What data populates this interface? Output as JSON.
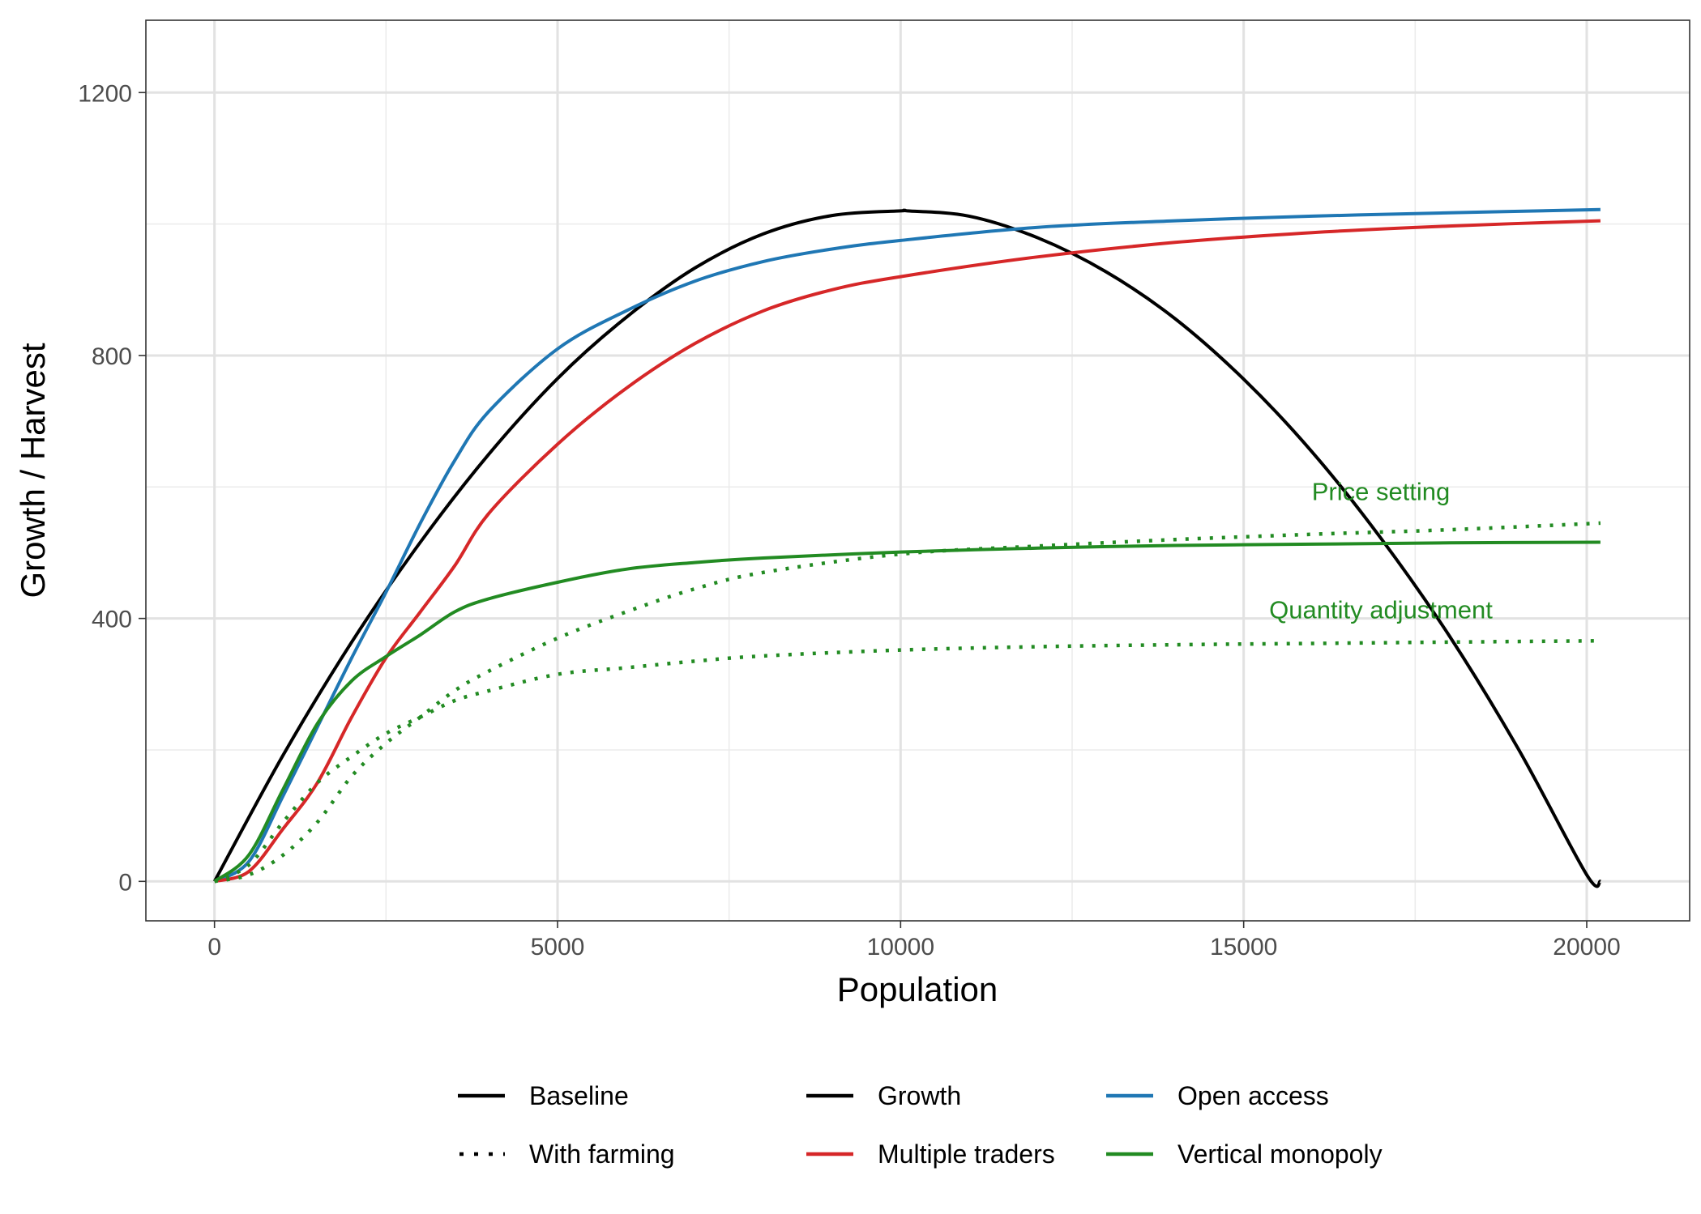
{
  "chart_data": {
    "type": "line",
    "xlabel": "Population",
    "ylabel": "Growth / Harvest",
    "xlim": [
      -1000,
      21500
    ],
    "ylim": [
      -60,
      1310
    ],
    "x_ticks": [
      0,
      5000,
      10000,
      15000,
      20000
    ],
    "y_ticks": [
      0,
      400,
      800,
      1200
    ],
    "x_tick_labels": [
      "0",
      "5000",
      "10000",
      "15000",
      "20000"
    ],
    "y_tick_labels": [
      "0",
      "400",
      "800",
      "1200"
    ],
    "grid": true,
    "legend_position": "bottom",
    "series": [
      {
        "key": "growth",
        "name": "Growth",
        "color": "#000000",
        "linetype": "solid",
        "x": [
          0,
          1000,
          2000,
          3000,
          4000,
          5000,
          6000,
          7000,
          8000,
          9000,
          10000,
          10100,
          11000,
          12000,
          13000,
          14000,
          15000,
          16000,
          17000,
          18000,
          19000,
          20000,
          20200
        ],
        "y": [
          0,
          192,
          364,
          516,
          650,
          765,
          858,
          933,
          985,
          1013,
          1020,
          1020,
          1012,
          979,
          927,
          856,
          764,
          653,
          522,
          373,
          202,
          10,
          0
        ]
      },
      {
        "key": "open_access",
        "color": "#1f77b4",
        "linetype": "solid",
        "x": [
          0,
          500,
          1000,
          1500,
          2000,
          2500,
          3000,
          3500,
          4000,
          5000,
          6000,
          7000,
          8000,
          9000,
          10000,
          12000,
          14000,
          16000,
          18000,
          20200
        ],
        "y": [
          0,
          30,
          130,
          235,
          340,
          440,
          545,
          640,
          715,
          810,
          868,
          913,
          943,
          962,
          975,
          995,
          1005,
          1012,
          1017,
          1022
        ]
      },
      {
        "key": "multiple_traders",
        "color": "#d62728",
        "linetype": "solid",
        "x": [
          0,
          500,
          1000,
          1500,
          2000,
          2500,
          3000,
          3500,
          4000,
          5000,
          6000,
          7000,
          8000,
          9000,
          10000,
          12000,
          14000,
          16000,
          18000,
          20200
        ],
        "y": [
          0,
          15,
          80,
          150,
          250,
          340,
          410,
          480,
          560,
          665,
          750,
          818,
          868,
          900,
          920,
          950,
          972,
          987,
          997,
          1005
        ]
      },
      {
        "key": "vertical_monopoly",
        "color": "#228b22",
        "linetype": "solid",
        "x": [
          0,
          500,
          1000,
          1500,
          2000,
          2500,
          3000,
          3500,
          4000,
          5000,
          6000,
          7000,
          8000,
          10000,
          12000,
          14000,
          16000,
          18000,
          20200
        ],
        "y": [
          0,
          40,
          140,
          240,
          305,
          342,
          375,
          410,
          430,
          455,
          475,
          485,
          492,
          501,
          507,
          511,
          513,
          515,
          516
        ]
      },
      {
        "key": "price_setting_farming",
        "color": "#228b22",
        "linetype": "dotted",
        "x": [
          0,
          500,
          1000,
          1500,
          2000,
          2500,
          3000,
          3500,
          4000,
          5000,
          6000,
          7000,
          8000,
          10000,
          12000,
          14000,
          16000,
          18000,
          20200
        ],
        "y": [
          0,
          10,
          40,
          90,
          160,
          210,
          250,
          290,
          320,
          370,
          410,
          445,
          470,
          498,
          510,
          520,
          528,
          535,
          545
        ]
      },
      {
        "key": "quantity_adjustment_farming",
        "color": "#228b22",
        "linetype": "dotted",
        "x": [
          0,
          500,
          1000,
          1500,
          2000,
          2500,
          3000,
          3500,
          4000,
          5000,
          6000,
          7000,
          8000,
          10000,
          12000,
          14000,
          16000,
          18000,
          20200
        ],
        "y": [
          0,
          25,
          90,
          150,
          190,
          225,
          250,
          275,
          290,
          315,
          325,
          335,
          343,
          352,
          357,
          360,
          362,
          364,
          366
        ]
      }
    ],
    "annotations": [
      {
        "text": "Price setting",
        "x": 17000,
        "y": 580,
        "color": "#228b22"
      },
      {
        "text": "Quantity adjustment",
        "x": 17000,
        "y": 400,
        "color": "#228b22"
      }
    ],
    "legend": {
      "linetype_entries": [
        {
          "label": "Baseline",
          "linetype": "solid",
          "color": "#000000"
        },
        {
          "label": "With farming",
          "linetype": "dotted",
          "color": "#000000"
        }
      ],
      "color_entries": [
        {
          "label": "Growth",
          "color": "#000000"
        },
        {
          "label": "Open access",
          "color": "#1f77b4"
        },
        {
          "label": "Multiple traders",
          "color": "#d62728"
        },
        {
          "label": "Vertical monopoly",
          "color": "#228b22"
        }
      ]
    }
  }
}
